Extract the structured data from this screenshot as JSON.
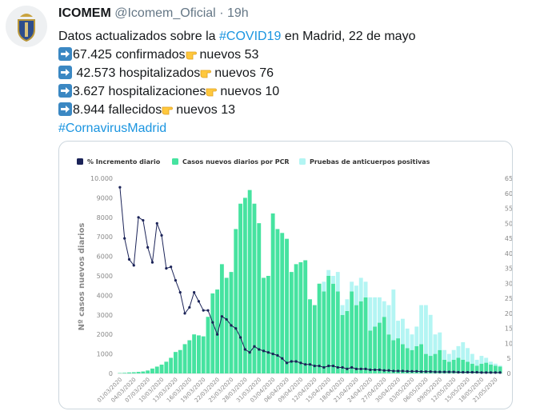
{
  "tweet": {
    "author": {
      "name": "ICOMEM",
      "handle": "@Icomem_Oficial",
      "separator": "·",
      "time": "19h"
    },
    "intro": [
      "Datos actualizados sobre la ",
      "#COVID19",
      " en Madrid, 22 de mayo"
    ],
    "lines": [
      {
        "total": "67.425 confirmados",
        "new": "nuevos 53"
      },
      {
        "total": " 42.573 hospitalizados",
        "new": "nuevos 76"
      },
      {
        "total": "3.627 hospitalizaciones",
        "new": "nuevos 10"
      },
      {
        "total": "8.944 fallecidos",
        "new": "nuevos 13"
      }
    ],
    "hashtag": "#CornavirusMadrid"
  },
  "chart_data": {
    "type": "bar",
    "stacked": true,
    "ylabel": "Nº casos nuevos diarios",
    "y2label": "% Incremento diario",
    "categories": [
      "01/03/2020",
      null,
      null,
      "04/03/2020",
      null,
      null,
      "07/03/2020",
      null,
      null,
      "10/03/2020",
      null,
      null,
      "13/03/2020",
      null,
      null,
      "16/03/2020",
      null,
      null,
      "19/03/2020",
      null,
      null,
      "22/03/2020",
      null,
      null,
      "25/03/2020",
      null,
      null,
      "28/03/2020",
      null,
      null,
      "31/03/2020",
      null,
      null,
      "03/04/2020",
      null,
      null,
      "06/04/2020",
      null,
      null,
      "09/04/2020",
      null,
      null,
      "12/04/2020",
      null,
      null,
      "15/04/2020",
      null,
      null,
      "18/04/2020",
      null,
      null,
      "21/04/2020",
      null,
      null,
      "24/04/2020",
      null,
      null,
      "27/04/2020",
      null,
      null,
      "30/04/2020",
      null,
      null,
      "03/05/2020",
      null,
      null,
      "06/05/2020",
      null,
      null,
      "09/05/2020",
      null,
      null,
      "12/05/2020",
      null,
      null,
      "15/05/2020",
      null,
      null,
      "18/05/2020",
      null,
      null,
      "21/05/2020",
      null
    ],
    "series": [
      {
        "name": "% Incremento diario",
        "type": "line",
        "axis": "y2",
        "color": "#1b2358",
        "values": [
          62,
          45,
          38,
          36,
          52,
          51,
          42,
          37,
          50,
          46,
          35,
          35.5,
          31,
          27,
          20,
          22,
          27,
          24,
          21,
          21,
          17,
          13,
          19,
          18,
          16,
          15,
          12,
          8,
          7,
          9,
          8,
          7.5,
          7,
          6.5,
          6,
          5,
          3.5,
          4,
          4,
          3.5,
          3,
          3,
          2.5,
          2.5,
          2,
          2.5,
          2.5,
          2,
          2,
          1.5,
          2,
          1.5,
          1.5,
          1.5,
          1.2,
          1.2,
          1.2,
          1,
          1,
          0.8,
          0.8,
          0.8,
          0.7,
          0.7,
          0.7,
          0.6,
          0.6,
          0.6,
          0.5,
          0.5,
          0.5,
          0.5,
          0.5,
          0.4,
          0.4,
          0.4,
          0.4,
          0.4,
          0.3,
          0.3,
          0.3,
          0.3,
          0.3
        ]
      },
      {
        "name": "Casos nuevos diarios por PCR",
        "type": "bar",
        "color": "#46e3a0",
        "values": [
          20,
          30,
          50,
          60,
          80,
          100,
          150,
          250,
          350,
          450,
          600,
          800,
          1100,
          1200,
          1500,
          1700,
          2000,
          1950,
          1900,
          2900,
          4100,
          4300,
          5600,
          4900,
          5200,
          7400,
          8700,
          9000,
          9400,
          8700,
          7700,
          4900,
          5000,
          8200,
          7400,
          7200,
          6900,
          5200,
          5600,
          5700,
          5800,
          3800,
          3500,
          4600,
          4200,
          5000,
          4600,
          4200,
          3000,
          3200,
          4200,
          3500,
          3700,
          3900,
          2200,
          2400,
          2600,
          2900,
          2000,
          1700,
          1800,
          1500,
          1300,
          1200,
          1400,
          1500,
          1000,
          900,
          1000,
          1200,
          700,
          600,
          700,
          800,
          700,
          600,
          500,
          400,
          500,
          550,
          450,
          400,
          350
        ]
      },
      {
        "name": "Pruebas de anticuerpos positivas",
        "type": "bar",
        "color": "#b3f5f3",
        "values": [
          null,
          null,
          null,
          null,
          null,
          null,
          null,
          null,
          null,
          null,
          null,
          null,
          null,
          null,
          null,
          null,
          null,
          null,
          null,
          null,
          null,
          null,
          null,
          null,
          null,
          null,
          null,
          null,
          null,
          null,
          null,
          null,
          null,
          null,
          null,
          null,
          null,
          null,
          null,
          null,
          null,
          null,
          null,
          null,
          500,
          300,
          400,
          1000,
          500,
          600,
          500,
          1000,
          1200,
          800,
          1700,
          1500,
          1300,
          800,
          1500,
          2600,
          900,
          1300,
          1000,
          800,
          1000,
          2000,
          2500,
          2100,
          1000,
          900,
          500,
          400,
          500,
          600,
          900,
          700,
          500,
          300,
          400,
          250,
          150,
          100,
          50
        ]
      }
    ],
    "ylim": [
      0,
      10000
    ],
    "yticks": [
      0,
      1000,
      2000,
      3000,
      4000,
      5000,
      6000,
      7000,
      8000,
      9000,
      {
        "value": 10000,
        "label": "10.000"
      }
    ],
    "y2lim": [
      0,
      65
    ],
    "y2ticks": [
      0,
      5,
      10,
      15,
      20,
      25,
      30,
      35,
      40,
      45,
      50,
      55,
      60,
      65
    ],
    "grid": false,
    "legend": "top-left"
  }
}
